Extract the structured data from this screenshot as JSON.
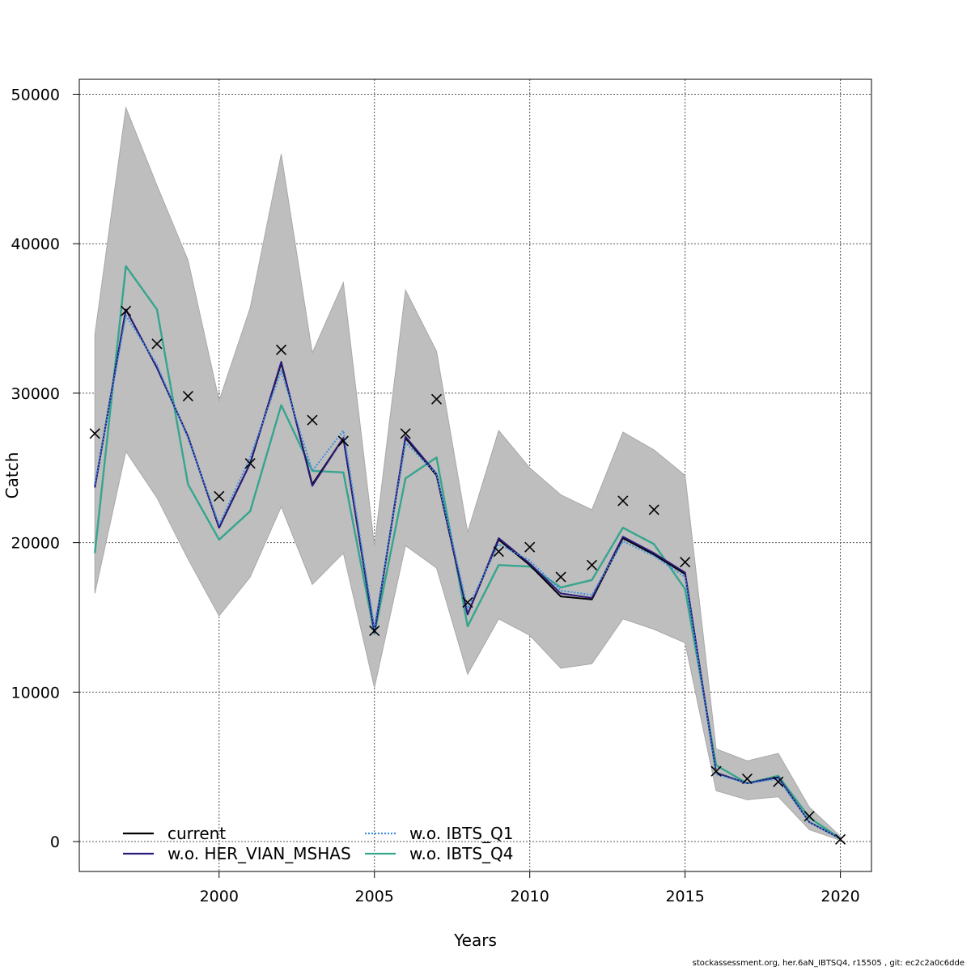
{
  "chart_data": {
    "type": "line",
    "xlabel": "Years",
    "ylabel": "Catch",
    "xlim": [
      1995.5,
      2021.0
    ],
    "ylim": [
      -2000,
      51000
    ],
    "x_ticks": [
      2000,
      2005,
      2010,
      2015,
      2020
    ],
    "y_ticks": [
      0,
      10000,
      20000,
      30000,
      40000,
      50000
    ],
    "grid": true,
    "legend_position": "bottom-left",
    "x": [
      1996,
      1997,
      1998,
      1999,
      2000,
      2001,
      2002,
      2003,
      2004,
      2005,
      2006,
      2007,
      2008,
      2009,
      2010,
      2011,
      2012,
      2013,
      2014,
      2015,
      2016,
      2017,
      2018,
      2019,
      2020
    ],
    "confidence_band": {
      "color": "#bebebe",
      "upper": [
        33900,
        49100,
        43900,
        38900,
        29500,
        35700,
        46000,
        32700,
        37400,
        19800,
        36900,
        32800,
        20700,
        27500,
        25000,
        23200,
        22200,
        27400,
        26200,
        24500,
        6200,
        5400,
        5900,
        2300,
        350
      ],
      "lower": [
        16600,
        26100,
        23000,
        18900,
        15100,
        17700,
        22400,
        17200,
        19300,
        10300,
        19800,
        18300,
        11200,
        14900,
        13800,
        11600,
        11900,
        14900,
        14200,
        13300,
        3400,
        2800,
        3000,
        800,
        80
      ]
    },
    "observed": {
      "marker": "x",
      "values": [
        27300,
        35500,
        33300,
        29800,
        23100,
        25300,
        32900,
        28200,
        26800,
        14100,
        27300,
        29600,
        16000,
        19400,
        19700,
        17700,
        18500,
        22800,
        22200,
        18700,
        4700,
        4200,
        4000,
        1700,
        150
      ]
    },
    "series": [
      {
        "name": "current",
        "color": "#000000",
        "style": "solid",
        "values": [
          23700,
          35600,
          31700,
          27100,
          21000,
          25300,
          32000,
          23900,
          27000,
          14000,
          27000,
          24500,
          15200,
          20200,
          18500,
          16400,
          16200,
          20300,
          19200,
          17900,
          4600,
          3900,
          4300,
          1300,
          200
        ]
      },
      {
        "name": "w.o. HER_VIAN_MSHAS",
        "color": "#2c1a7a",
        "style": "solid",
        "values": [
          23700,
          35600,
          31700,
          27100,
          21000,
          25300,
          32100,
          23800,
          27000,
          14000,
          27100,
          24600,
          15200,
          20300,
          18600,
          16600,
          16300,
          20400,
          19300,
          18000,
          4600,
          3900,
          4300,
          1300,
          200
        ]
      },
      {
        "name": "w.o. IBTS_Q1",
        "color": "#3a8fe0",
        "style": "dotted",
        "values": [
          23900,
          35200,
          31900,
          27000,
          21200,
          25700,
          31500,
          24800,
          27500,
          14300,
          26700,
          24600,
          15600,
          19900,
          18800,
          16800,
          16500,
          20100,
          19100,
          17700,
          4500,
          3900,
          4200,
          1300,
          200
        ]
      },
      {
        "name": "w.o. IBTS_Q4",
        "color": "#35a58e",
        "style": "solid",
        "values": [
          19300,
          38500,
          35600,
          23900,
          20200,
          22100,
          29200,
          24800,
          24700,
          13900,
          24300,
          25700,
          14400,
          18500,
          18400,
          17000,
          17500,
          21000,
          19900,
          16900,
          5100,
          3900,
          4400,
          1600,
          200
        ]
      }
    ]
  },
  "footer": "stockassessment.org, her.6aN_IBTSQ4, r15505 , git: ec2c2a0c6dde"
}
